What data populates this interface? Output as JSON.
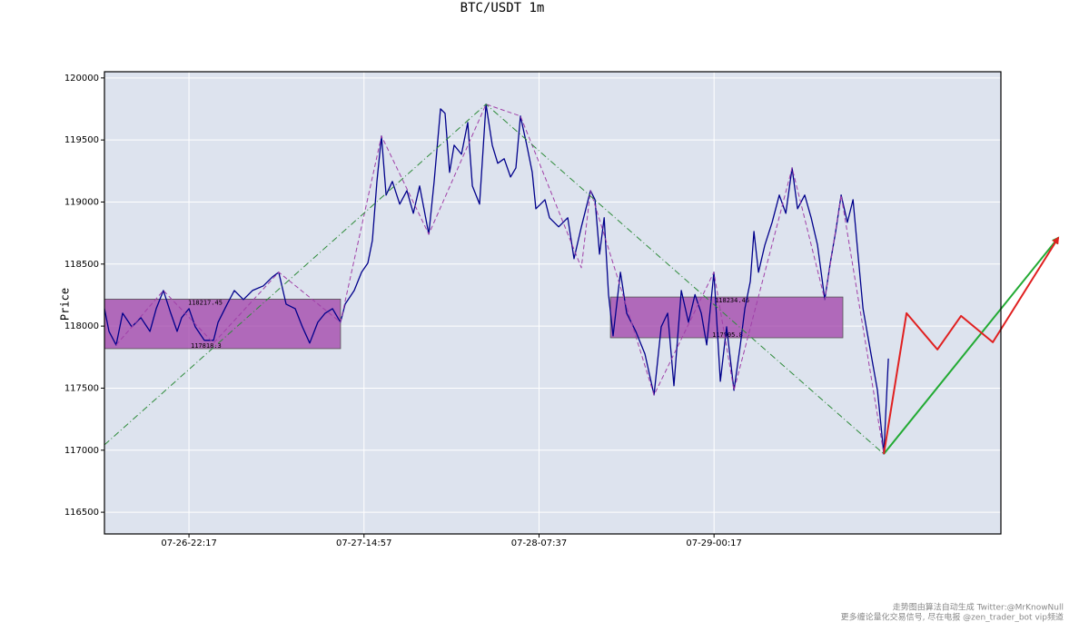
{
  "chart_data": {
    "type": "line",
    "title": "BTC/USDT 1m",
    "ylabel": "Price",
    "background": "#dde3ee",
    "grid": true,
    "xlim": [
      0,
      5122
    ],
    "ylim": [
      116325,
      120050
    ],
    "xticks": [
      {
        "value": 483,
        "label": "07-26-22:17"
      },
      {
        "value": 1483,
        "label": "07-27-14:57"
      },
      {
        "value": 2483,
        "label": "07-28-07:37"
      },
      {
        "value": 3483,
        "label": "07-29-00:17"
      }
    ],
    "yticks": [
      116500,
      117000,
      117500,
      118000,
      118500,
      119000,
      119500,
      120000
    ],
    "boxes": [
      {
        "x": [
          0,
          1349
        ],
        "high": 118217.45,
        "low": 117818.3,
        "color": "#a040a8"
      },
      {
        "x": [
          2891,
          4219
        ],
        "high": 118234.46,
        "low": 117905.8,
        "color": "#a040a8"
      }
    ],
    "series": [
      {
        "color": "#00008b",
        "style": "solid",
        "width": 1.3,
        "x": [
          0,
          26,
          67,
          104,
          156,
          208,
          260,
          296,
          337,
          379,
          415,
          441,
          483,
          519,
          571,
          623,
          649,
          701,
          742,
          794,
          846,
          908,
          960,
          996,
          1038,
          1090,
          1131,
          1173,
          1219,
          1261,
          1303,
          1349,
          1375,
          1427,
          1469,
          1505,
          1531,
          1557,
          1583,
          1609,
          1645,
          1687,
          1728,
          1765,
          1801,
          1853,
          1884,
          1920,
          1946,
          1972,
          1998,
          2040,
          2076,
          2102,
          2143,
          2180,
          2216,
          2247,
          2284,
          2320,
          2351,
          2377,
          2413,
          2444,
          2465,
          2517,
          2543,
          2595,
          2647,
          2683,
          2725,
          2777,
          2803,
          2829,
          2855,
          2880,
          2906,
          2948,
          2984,
          3036,
          3088,
          3140,
          3181,
          3218,
          3254,
          3296,
          3337,
          3374,
          3410,
          3441,
          3482,
          3519,
          3555,
          3597,
          3633,
          3659,
          3690,
          3711,
          3737,
          3773,
          3815,
          3856,
          3893,
          3929,
          3960,
          4001,
          4038,
          4074,
          4116,
          4147,
          4178,
          4209,
          4245,
          4277,
          4308,
          4334,
          4375,
          4417,
          4453,
          4479
        ],
        "values": [
          118141,
          117958,
          117848,
          118104,
          117994,
          118068,
          117958,
          118141,
          118287,
          118104,
          117958,
          118068,
          118141,
          117994,
          117885,
          117885,
          118031,
          118177,
          118287,
          118214,
          118287,
          118324,
          118397,
          118434,
          118177,
          118141,
          117994,
          117863,
          118031,
          118104,
          118141,
          118031,
          118177,
          118287,
          118434,
          118507,
          118690,
          119166,
          119532,
          119056,
          119166,
          118983,
          119092,
          118909,
          119129,
          118741,
          119166,
          119751,
          119715,
          119239,
          119458,
          119385,
          119641,
          119129,
          118983,
          119788,
          119458,
          119312,
          119349,
          119202,
          119275,
          119693,
          119458,
          119239,
          118946,
          119019,
          118873,
          118800,
          118873,
          118543,
          118800,
          119092,
          119019,
          118580,
          118873,
          118254,
          117921,
          118434,
          118104,
          117958,
          117775,
          117445,
          117994,
          118104,
          117519,
          118287,
          118031,
          118254,
          118104,
          117848,
          118434,
          117555,
          117994,
          117482,
          117848,
          118141,
          118360,
          118763,
          118434,
          118653,
          118836,
          119056,
          118909,
          119275,
          118946,
          119056,
          118873,
          118653,
          118214,
          118507,
          118763,
          119056,
          118836,
          119019,
          118543,
          118141,
          117811,
          117482,
          116970,
          117738
        ]
      },
      {
        "color": "#a040a8",
        "style": "dashed",
        "width": 1,
        "x": [
          67,
          337,
          623,
          996,
          1349,
          1583,
          1853,
          2180,
          2377,
          2725,
          2777,
          3140,
          3482,
          3597,
          3929,
          4116,
          4209,
          4453
        ],
        "values": [
          117848,
          118287,
          117863,
          118434,
          118031,
          119532,
          118741,
          119788,
          119693,
          118470,
          119092,
          117445,
          118434,
          117482,
          119275,
          118214,
          119056,
          116970
        ]
      },
      {
        "color": "#2e8b3a",
        "style": "dashdot",
        "width": 1,
        "x": [
          0,
          2180,
          4453
        ],
        "values": [
          117043,
          119788,
          116970
        ]
      },
      {
        "color": "#22aa33",
        "style": "solid",
        "width": 2,
        "arrow": true,
        "x": [
          4453,
          5450
        ],
        "values": [
          116970,
          118712
        ]
      },
      {
        "color": "#e02020",
        "style": "solid",
        "width": 2,
        "arrow": true,
        "x": [
          4453,
          4583,
          4759,
          4894,
          5076,
          5450
        ],
        "values": [
          116970,
          118104,
          117811,
          118082,
          117870,
          118712
        ]
      }
    ]
  },
  "footer": [
    "走势图由算法自动生成  Twitter:@MrKnowNull",
    "更多缠论量化交易信号, 尽在电报 @zen_trader_bot vip频道"
  ]
}
